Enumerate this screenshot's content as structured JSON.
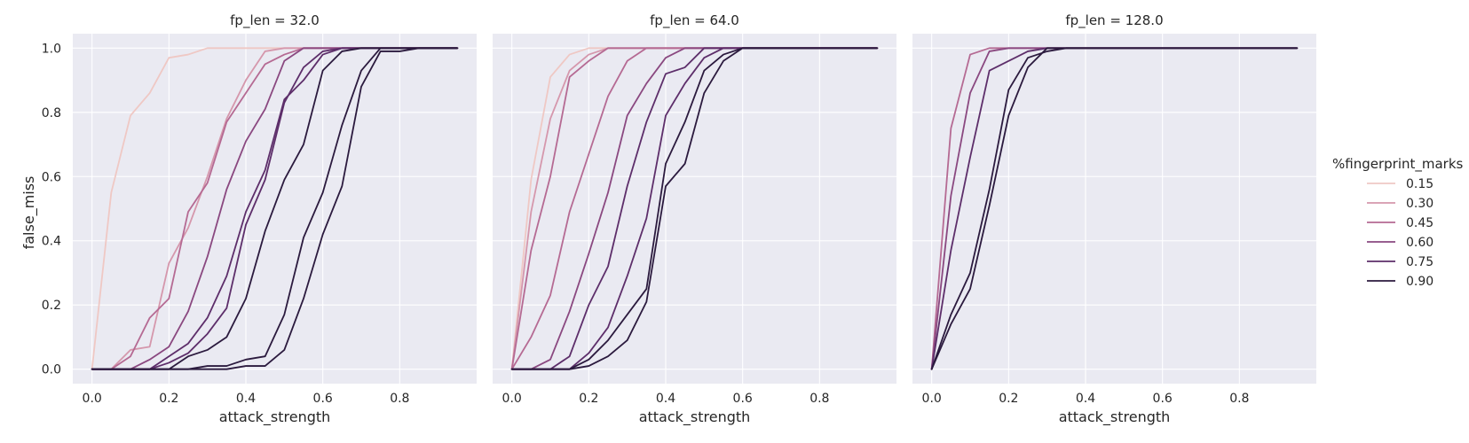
{
  "chart_data": {
    "type": "line",
    "xlabel": "attack_strength",
    "ylabel": "false_miss",
    "xlim": [
      -0.05,
      1.0
    ],
    "ylim": [
      -0.045,
      1.045
    ],
    "x_ticks": [
      "0.0",
      "0.2",
      "0.4",
      "0.6",
      "0.8"
    ],
    "y_ticks": [
      "0.0",
      "0.2",
      "0.4",
      "0.6",
      "0.8",
      "1.0"
    ],
    "grid": true,
    "legend": {
      "title": "%fingerprint_marks",
      "placement": "right",
      "entries": [
        "0.15",
        "0.30",
        "0.45",
        "0.60",
        "0.75",
        "0.90"
      ],
      "colors": [
        "#efc8c4",
        "#d597ac",
        "#b56a93",
        "#8a4880",
        "#5d2e6a",
        "#2b1a3e"
      ]
    },
    "x": [
      0.0,
      0.05,
      0.1,
      0.15,
      0.2,
      0.25,
      0.3,
      0.35,
      0.4,
      0.45,
      0.5,
      0.55,
      0.6,
      0.65,
      0.7,
      0.75,
      0.8,
      0.85,
      0.9,
      0.95
    ],
    "facets": [
      {
        "title": "fp_len = 32.0",
        "series": [
          {
            "name": "0.15",
            "values": [
              0.0,
              0.55,
              0.79,
              0.86,
              0.97,
              0.98,
              1.0,
              1.0,
              1.0,
              1.0,
              1.0,
              1.0,
              1.0,
              1.0,
              1.0,
              1.0,
              1.0,
              1.0,
              1.0,
              1.0
            ]
          },
          {
            "name": "0.30",
            "values": [
              0.0,
              0.0,
              0.06,
              0.07,
              0.33,
              0.44,
              0.6,
              0.78,
              0.9,
              0.99,
              1.0,
              1.0,
              1.0,
              1.0,
              1.0,
              1.0,
              1.0,
              1.0,
              1.0,
              1.0
            ]
          },
          {
            "name": "0.45",
            "values": [
              0.0,
              0.0,
              0.04,
              0.16,
              0.22,
              0.49,
              0.58,
              0.77,
              0.86,
              0.95,
              0.98,
              1.0,
              1.0,
              1.0,
              1.0,
              1.0,
              1.0,
              1.0,
              1.0,
              1.0
            ]
          },
          {
            "name": "0.60",
            "values": [
              0.0,
              0.0,
              0.0,
              0.03,
              0.07,
              0.18,
              0.35,
              0.56,
              0.71,
              0.81,
              0.96,
              1.0,
              1.0,
              1.0,
              1.0,
              1.0,
              1.0,
              1.0,
              1.0,
              1.0
            ]
          },
          {
            "name": "0.75",
            "values": [
              0.0,
              0.0,
              0.0,
              0.0,
              0.04,
              0.08,
              0.16,
              0.29,
              0.49,
              0.62,
              0.84,
              0.9,
              0.98,
              1.0,
              1.0,
              1.0,
              1.0,
              1.0,
              1.0,
              1.0
            ]
          },
          {
            "name": "0.75",
            "values": [
              0.0,
              0.0,
              0.0,
              0.0,
              0.02,
              0.05,
              0.11,
              0.19,
              0.45,
              0.59,
              0.83,
              0.94,
              0.99,
              1.0,
              1.0,
              1.0,
              1.0,
              1.0,
              1.0,
              1.0
            ]
          },
          {
            "name": "0.90",
            "values": [
              0.0,
              0.0,
              0.0,
              0.0,
              0.0,
              0.04,
              0.06,
              0.1,
              0.22,
              0.43,
              0.59,
              0.7,
              0.93,
              0.99,
              1.0,
              1.0,
              1.0,
              1.0,
              1.0,
              1.0
            ]
          },
          {
            "name": "0.90",
            "values": [
              0.0,
              0.0,
              0.0,
              0.0,
              0.0,
              0.0,
              0.01,
              0.01,
              0.03,
              0.04,
              0.17,
              0.41,
              0.55,
              0.76,
              0.93,
              1.0,
              1.0,
              1.0,
              1.0,
              1.0
            ]
          },
          {
            "name": "0.90",
            "values": [
              0.0,
              0.0,
              0.0,
              0.0,
              0.0,
              0.0,
              0.0,
              0.0,
              0.01,
              0.01,
              0.06,
              0.22,
              0.42,
              0.57,
              0.88,
              0.99,
              0.99,
              1.0,
              1.0,
              1.0
            ]
          }
        ]
      },
      {
        "title": "fp_len = 64.0",
        "series": [
          {
            "name": "0.15",
            "values": [
              0.0,
              0.59,
              0.91,
              0.98,
              1.0,
              1.0,
              1.0,
              1.0,
              1.0,
              1.0,
              1.0,
              1.0,
              1.0,
              1.0,
              1.0,
              1.0,
              1.0,
              1.0,
              1.0,
              1.0
            ]
          },
          {
            "name": "0.30",
            "values": [
              0.0,
              0.49,
              0.78,
              0.93,
              0.98,
              1.0,
              1.0,
              1.0,
              1.0,
              1.0,
              1.0,
              1.0,
              1.0,
              1.0,
              1.0,
              1.0,
              1.0,
              1.0,
              1.0,
              1.0
            ]
          },
          {
            "name": "0.45",
            "values": [
              0.0,
              0.37,
              0.6,
              0.91,
              0.96,
              1.0,
              1.0,
              1.0,
              1.0,
              1.0,
              1.0,
              1.0,
              1.0,
              1.0,
              1.0,
              1.0,
              1.0,
              1.0,
              1.0,
              1.0
            ]
          },
          {
            "name": "0.45",
            "values": [
              0.0,
              0.1,
              0.23,
              0.49,
              0.67,
              0.85,
              0.96,
              1.0,
              1.0,
              1.0,
              1.0,
              1.0,
              1.0,
              1.0,
              1.0,
              1.0,
              1.0,
              1.0,
              1.0,
              1.0
            ]
          },
          {
            "name": "0.60",
            "values": [
              0.0,
              0.0,
              0.03,
              0.18,
              0.36,
              0.55,
              0.79,
              0.89,
              0.97,
              1.0,
              1.0,
              1.0,
              1.0,
              1.0,
              1.0,
              1.0,
              1.0,
              1.0,
              1.0,
              1.0
            ]
          },
          {
            "name": "0.75",
            "values": [
              0.0,
              0.0,
              0.0,
              0.04,
              0.2,
              0.32,
              0.57,
              0.77,
              0.92,
              0.94,
              1.0,
              1.0,
              1.0,
              1.0,
              1.0,
              1.0,
              1.0,
              1.0,
              1.0,
              1.0
            ]
          },
          {
            "name": "0.75",
            "values": [
              0.0,
              0.0,
              0.0,
              0.0,
              0.05,
              0.13,
              0.29,
              0.47,
              0.79,
              0.89,
              0.97,
              1.0,
              1.0,
              1.0,
              1.0,
              1.0,
              1.0,
              1.0,
              1.0,
              1.0
            ]
          },
          {
            "name": "0.90",
            "values": [
              0.0,
              0.0,
              0.0,
              0.0,
              0.03,
              0.09,
              0.17,
              0.25,
              0.64,
              0.77,
              0.93,
              0.98,
              1.0,
              1.0,
              1.0,
              1.0,
              1.0,
              1.0,
              1.0,
              1.0
            ]
          },
          {
            "name": "0.90",
            "values": [
              0.0,
              0.0,
              0.0,
              0.0,
              0.01,
              0.04,
              0.09,
              0.21,
              0.57,
              0.64,
              0.86,
              0.96,
              1.0,
              1.0,
              1.0,
              1.0,
              1.0,
              1.0,
              1.0,
              1.0
            ]
          }
        ]
      },
      {
        "title": "fp_len = 128.0",
        "series": [
          {
            "name": "0.45",
            "values": [
              0.0,
              0.75,
              0.98,
              1.0,
              1.0,
              1.0,
              1.0,
              1.0,
              1.0,
              1.0,
              1.0,
              1.0,
              1.0,
              1.0,
              1.0,
              1.0,
              1.0,
              1.0,
              1.0,
              1.0
            ]
          },
          {
            "name": "0.60",
            "values": [
              0.0,
              0.54,
              0.86,
              0.99,
              1.0,
              1.0,
              1.0,
              1.0,
              1.0,
              1.0,
              1.0,
              1.0,
              1.0,
              1.0,
              1.0,
              1.0,
              1.0,
              1.0,
              1.0,
              1.0
            ]
          },
          {
            "name": "0.75",
            "values": [
              0.0,
              0.37,
              0.66,
              0.93,
              0.96,
              0.99,
              1.0,
              1.0,
              1.0,
              1.0,
              1.0,
              1.0,
              1.0,
              1.0,
              1.0,
              1.0,
              1.0,
              1.0,
              1.0,
              1.0
            ]
          },
          {
            "name": "0.90",
            "values": [
              0.0,
              0.17,
              0.3,
              0.56,
              0.87,
              0.97,
              0.99,
              1.0,
              1.0,
              1.0,
              1.0,
              1.0,
              1.0,
              1.0,
              1.0,
              1.0,
              1.0,
              1.0,
              1.0,
              1.0
            ]
          },
          {
            "name": "0.90",
            "values": [
              0.0,
              0.14,
              0.25,
              0.51,
              0.79,
              0.94,
              1.0,
              1.0,
              1.0,
              1.0,
              1.0,
              1.0,
              1.0,
              1.0,
              1.0,
              1.0,
              1.0,
              1.0,
              1.0,
              1.0
            ]
          }
        ]
      }
    ]
  }
}
